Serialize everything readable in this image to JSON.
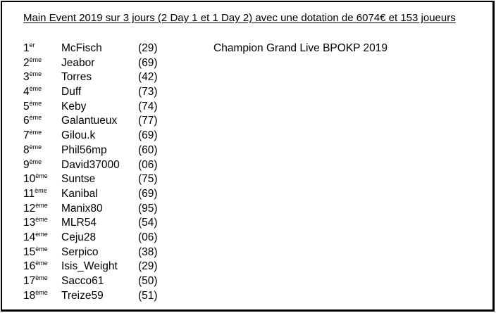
{
  "heading": "Main Event 2019 sur 3 jours (2 Day 1 et 1 Day 2) avec une dotation de 6074€ et 153 joueurs",
  "champion_label": "Champion Grand Live BPOKP 2019",
  "results": [
    {
      "num": "1",
      "suffix": "er",
      "player": "McFisch",
      "dept": "(29)"
    },
    {
      "num": "2",
      "suffix": "ème",
      "player": "Jeabor",
      "dept": "(69)"
    },
    {
      "num": "3",
      "suffix": "ème",
      "player": "Torres",
      "dept": "(42)"
    },
    {
      "num": "4",
      "suffix": "ème",
      "player": "Duff",
      "dept": "(73)"
    },
    {
      "num": "5",
      "suffix": "ème",
      "player": "Keby",
      "dept": "(74)"
    },
    {
      "num": "6",
      "suffix": "ème",
      "player": "Galantueux",
      "dept": "(77)"
    },
    {
      "num": "7",
      "suffix": "ème",
      "player": "Gilou.k",
      "dept": "(69)"
    },
    {
      "num": "8",
      "suffix": "ème",
      "player": "Phil56mp",
      "dept": "(60)"
    },
    {
      "num": "9",
      "suffix": "ème",
      "player": "David37000",
      "dept": "(06)"
    },
    {
      "num": "10",
      "suffix": "ème",
      "player": "Suntse",
      "dept": "(75)"
    },
    {
      "num": "11",
      "suffix": "ème",
      "player": "Kanibal",
      "dept": "(69)"
    },
    {
      "num": "12",
      "suffix": "ème",
      "player": "Manix80",
      "dept": "(95)"
    },
    {
      "num": "13",
      "suffix": "ème",
      "player": "MLR54",
      "dept": "(54)"
    },
    {
      "num": "14",
      "suffix": "ème",
      "player": "Ceju28",
      "dept": "(06)"
    },
    {
      "num": "15",
      "suffix": "ème",
      "player": "Serpico",
      "dept": "(38)"
    },
    {
      "num": "16",
      "suffix": "ème",
      "player": "Isis_Weight",
      "dept": "(29)"
    },
    {
      "num": "17",
      "suffix": "ème",
      "player": "Sacco61",
      "dept": "(50)"
    },
    {
      "num": "18",
      "suffix": "ème",
      "player": "Treize59",
      "dept": "(51)"
    }
  ]
}
